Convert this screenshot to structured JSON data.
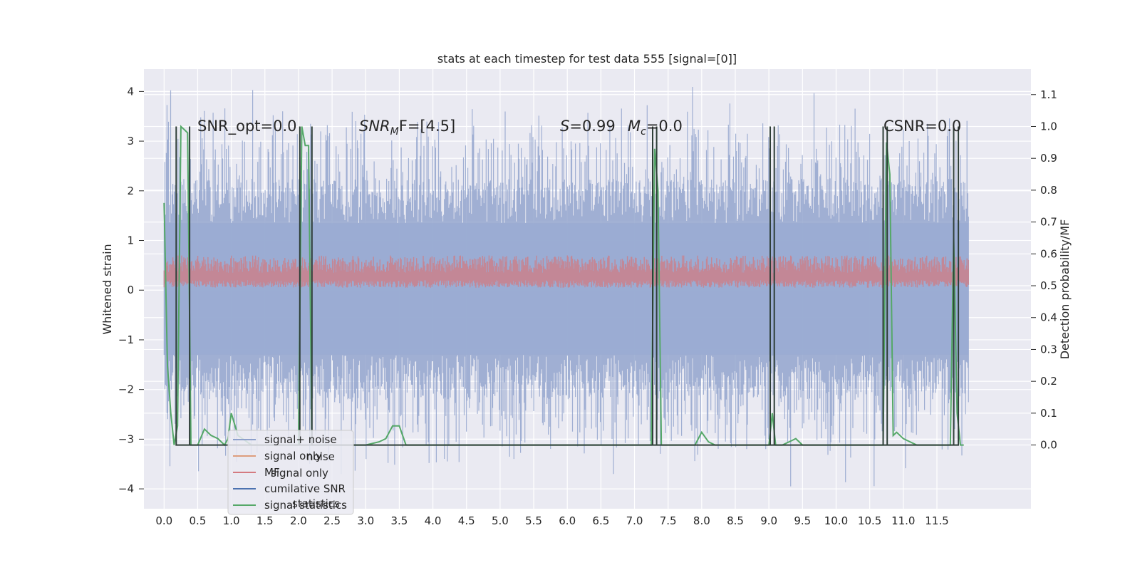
{
  "chart_data": {
    "type": "line",
    "title": "stats at each timestep for test data 555 [signal=[0]]",
    "ylabel_left": "Whitened strain",
    "ylabel_right": "Detection probability/MF",
    "x_ticks": [
      "0.0",
      "0.5",
      "1.0",
      "1.5",
      "2.0",
      "2.5",
      "3.0",
      "3.5",
      "4.0",
      "4.5",
      "5.0",
      "5.5",
      "6.0",
      "6.5",
      "7.0",
      "7.5",
      "8.0",
      "8.5",
      "9.0",
      "9.5",
      "10.0",
      "10.5",
      "11.0",
      "11.5"
    ],
    "y_left_ticks": [
      "4",
      "3",
      "2",
      "1",
      "0",
      "−1",
      "−2",
      "−3",
      "−4"
    ],
    "y_right_ticks": [
      "1.1",
      "1.0",
      "0.9",
      "0.8",
      "0.7",
      "0.6",
      "0.5",
      "0.4",
      "0.3",
      "0.2",
      "0.1",
      "0.0"
    ],
    "xlim": [
      -0.3,
      12.9
    ],
    "ylim_left": [
      -4.4,
      4.45
    ],
    "ylim_right": [
      -0.2,
      1.18
    ],
    "grid": true,
    "annotations": {
      "snr_opt": "SNR_opt=0.0",
      "snr_mf_sym": "SNR",
      "snr_mf_sub": "M",
      "snr_mf_rest": "F=[4.5]",
      "s_sym": "S",
      "s_val": "=0.99",
      "mc_sym": "M",
      "mc_sub": "c",
      "mc_val": "=0.0",
      "csnr": "CSNR=0.0"
    },
    "legend": {
      "placement": "lower-left",
      "entries": [
        {
          "label": "signal+ noise",
          "color": "#8da0cb"
        },
        {
          "label": "signal only",
          "color": "#dd9e7e"
        },
        {
          "label": "MF",
          "color": "#d47a80"
        },
        {
          "label": "cumilative SNR",
          "color": "#4c72b0"
        },
        {
          "label": "signal statistics",
          "color": "#55a868"
        }
      ],
      "ghost_entries": [
        "noise",
        "signal only",
        "statistics"
      ]
    },
    "series": [
      {
        "name": "signal statistics",
        "axis": "right",
        "color": "#55a868",
        "x": [
          0.0,
          0.05,
          0.1,
          0.15,
          0.2,
          0.25,
          0.3,
          0.35,
          0.4,
          0.5,
          0.6,
          0.7,
          0.8,
          0.9,
          0.95,
          1.0,
          1.1,
          1.3,
          1.5,
          1.8,
          2.0,
          2.05,
          2.1,
          2.15,
          2.2,
          2.25,
          2.3,
          2.5,
          3.0,
          3.2,
          3.3,
          3.4,
          3.5,
          3.6,
          4.0,
          5.0,
          6.0,
          7.0,
          7.25,
          7.3,
          7.35,
          7.4,
          7.5,
          7.8,
          7.9,
          8.0,
          8.1,
          8.2,
          8.5,
          9.0,
          9.05,
          9.1,
          9.2,
          9.3,
          9.4,
          9.5,
          10.0,
          10.5,
          10.7,
          10.75,
          10.8,
          10.85,
          10.9,
          11.0,
          11.1,
          11.2,
          11.3,
          11.5,
          11.7,
          11.75,
          11.8,
          11.85,
          11.9
        ],
        "values": [
          0.76,
          0.25,
          0.1,
          0.0,
          0.06,
          1.0,
          0.99,
          0.98,
          0.0,
          0.0,
          0.05,
          0.03,
          0.02,
          0.0,
          0.02,
          0.1,
          0.03,
          0.0,
          0.0,
          0.0,
          0.0,
          1.0,
          0.94,
          0.94,
          0.0,
          0.0,
          0.0,
          0.0,
          0.0,
          0.01,
          0.02,
          0.06,
          0.06,
          0.0,
          0.0,
          0.0,
          0.0,
          0.0,
          0.0,
          0.93,
          0.8,
          0.0,
          0.0,
          0.0,
          0.0,
          0.04,
          0.01,
          0.0,
          0.0,
          0.0,
          0.1,
          0.0,
          0.0,
          0.01,
          0.02,
          0.0,
          0.0,
          0.0,
          0.0,
          0.95,
          0.85,
          0.03,
          0.04,
          0.02,
          0.01,
          0.0,
          0.0,
          0.0,
          0.0,
          0.65,
          0.1,
          0.0,
          0.0
        ]
      },
      {
        "name": "cumilative SNR",
        "axis": "right",
        "color": "#2f3f38",
        "x": [
          0.18,
          0.18,
          0.18,
          0.38,
          0.38,
          0.38,
          2.02,
          2.02,
          2.02,
          2.2,
          2.2,
          2.2,
          7.27,
          7.27,
          7.27,
          7.33,
          7.33,
          7.33,
          9.02,
          9.02,
          9.02,
          9.08,
          9.08,
          9.08,
          10.7,
          10.7,
          10.7,
          10.76,
          10.76,
          10.76,
          11.75,
          11.75,
          11.75,
          11.82,
          11.82,
          11.82
        ],
        "values": [
          0.0,
          1.0,
          0.0,
          0.0,
          1.0,
          0.0,
          0.0,
          1.0,
          0.0,
          0.0,
          1.0,
          0.0,
          0.0,
          1.0,
          0.0,
          0.0,
          1.0,
          0.0,
          0.0,
          1.0,
          0.0,
          0.0,
          1.0,
          0.0,
          0.0,
          1.0,
          0.0,
          0.0,
          1.0,
          0.0,
          0.0,
          1.0,
          0.0,
          0.0,
          1.0,
          0.0
        ]
      }
    ],
    "noise_bands": {
      "signal+ noise": {
        "axis": "left",
        "t_end": 11.97,
        "band": [
          -1.3,
          1.35
        ],
        "peak_max": 4.1,
        "trough_min": -4.0
      },
      "MF": {
        "axis": "left",
        "t_end": 11.97,
        "band": [
          0.05,
          0.6
        ]
      }
    }
  }
}
